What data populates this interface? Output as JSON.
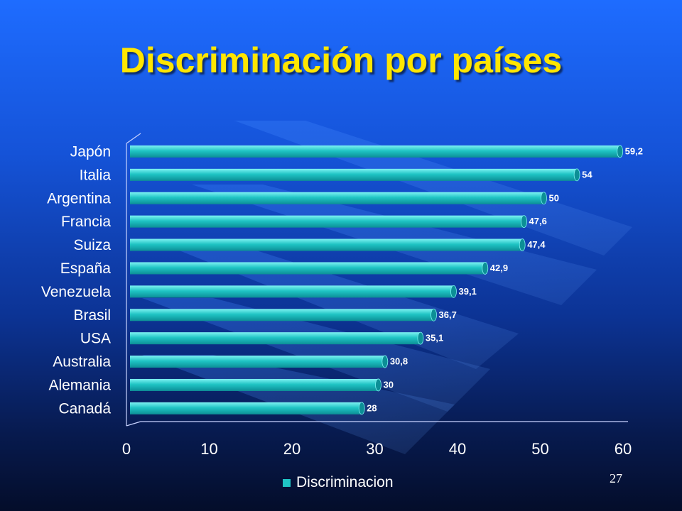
{
  "slide": {
    "title": "Discriminación por países",
    "page_number": "27"
  },
  "colors": {
    "title": "#ffe600",
    "bar": "#1fc4c4",
    "bar_light": "#7ef2f2",
    "bar_dark": "#0c8f96",
    "axis": "#c9d3ff"
  },
  "chart_data": {
    "type": "bar",
    "orientation": "horizontal",
    "categories": [
      "Japón",
      "Italia",
      "Argentina",
      "Francia",
      "Suiza",
      "España",
      "Venezuela",
      "Brasil",
      "USA",
      "Australia",
      "Alemania",
      "Canadá"
    ],
    "series": [
      {
        "name": "Discriminacion",
        "values": [
          59.2,
          54,
          50,
          47.6,
          47.4,
          42.9,
          39.1,
          36.7,
          35.1,
          30.8,
          30,
          28
        ],
        "value_labels": [
          "59,2",
          "54",
          "50",
          "47,6",
          "47,4",
          "42,9",
          "39,1",
          "36,7",
          "35,1",
          "30,8",
          "30",
          "28"
        ]
      }
    ],
    "xlim": [
      0,
      60
    ],
    "xticks": [
      0,
      10,
      20,
      30,
      40,
      50,
      60
    ],
    "grid": false,
    "legend_position": "bottom"
  }
}
